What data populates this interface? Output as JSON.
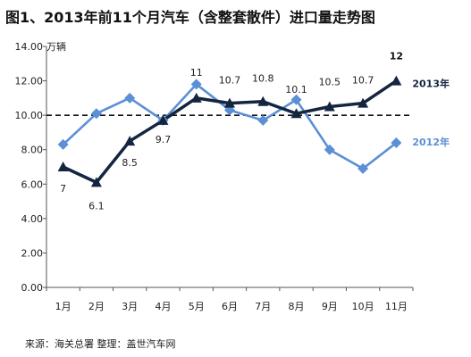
{
  "title": "图1、2013年前11个月汽车（含整套散件）进口量走势图",
  "source": "来源：海关总署   整理：盖世汽车网",
  "chart_data": {
    "type": "line",
    "categories": [
      "1月",
      "2月",
      "3月",
      "4月",
      "5月",
      "6月",
      "7月",
      "8月",
      "9月",
      "10月",
      "11月"
    ],
    "y_unit": "万辆",
    "ylim": [
      0,
      14
    ],
    "y_ticks": [
      "0.00",
      "2.00",
      "4.00",
      "6.00",
      "8.00",
      "10.00",
      "12.00",
      "14.00"
    ],
    "reference_line": 10,
    "series": [
      {
        "name": "2013年",
        "color": "#14253f",
        "marker": "triangle",
        "values": [
          7,
          6.1,
          8.5,
          9.7,
          11,
          10.7,
          10.8,
          10.1,
          10.5,
          10.7,
          12
        ],
        "labels": [
          "7",
          "6.1",
          "8.5",
          "9.7",
          "11",
          "10.7",
          "10.8",
          "10.1",
          "10.5",
          "10.7",
          "12"
        ]
      },
      {
        "name": "2012年",
        "color": "#5b8fd6",
        "marker": "diamond",
        "values": [
          8.3,
          10.1,
          11,
          9.7,
          11.8,
          10.3,
          9.7,
          10.9,
          8,
          6.9,
          8.4
        ]
      }
    ]
  }
}
